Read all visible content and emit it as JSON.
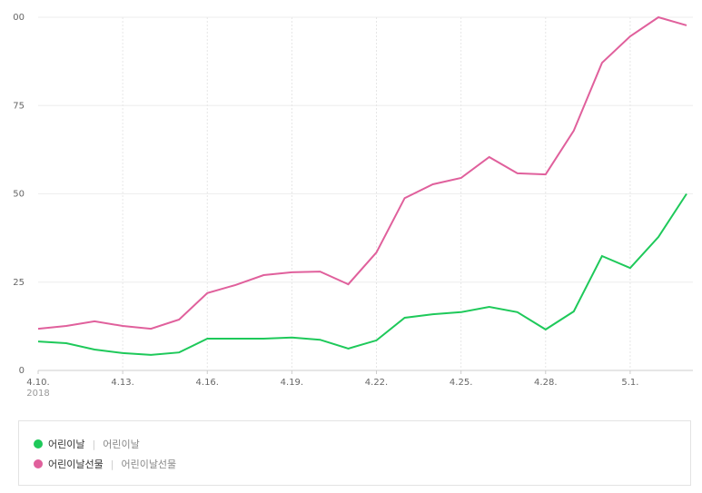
{
  "chart_data": {
    "type": "line",
    "categories": [
      "4.10.",
      null,
      null,
      "4.13.",
      null,
      null,
      "4.16.",
      null,
      null,
      "4.19.",
      null,
      null,
      "4.22.",
      null,
      null,
      "4.25.",
      null,
      null,
      "4.28.",
      null,
      null,
      "5.1.",
      null,
      null
    ],
    "year_label": "2018",
    "ylim": [
      0,
      100
    ],
    "yticks": [
      0,
      25,
      50,
      75,
      {
        "value": 100,
        "label": "00"
      }
    ],
    "grid": true,
    "series": [
      {
        "name": "어린이날",
        "keyword": "어린이날",
        "color": "#1ec95a",
        "values": [
          8.2,
          7.7,
          5.9,
          4.9,
          4.4,
          5.1,
          9.0,
          9.0,
          9.0,
          9.3,
          8.7,
          6.2,
          8.5,
          14.9,
          15.9,
          16.5,
          18.0,
          16.5,
          11.6,
          16.7,
          32.4,
          29.0,
          37.8,
          50
        ]
      },
      {
        "name": "어린이날선물",
        "keyword": "어린이날선물",
        "color": "#e0609c",
        "values": [
          11.8,
          12.6,
          13.9,
          12.6,
          11.8,
          14.4,
          21.9,
          24.2,
          27.0,
          27.8,
          28.0,
          24.4,
          33.4,
          48.8,
          52.7,
          54.5,
          60.4,
          55.8,
          55.5,
          67.9,
          87.1,
          94.6,
          100,
          97.7
        ]
      }
    ]
  }
}
